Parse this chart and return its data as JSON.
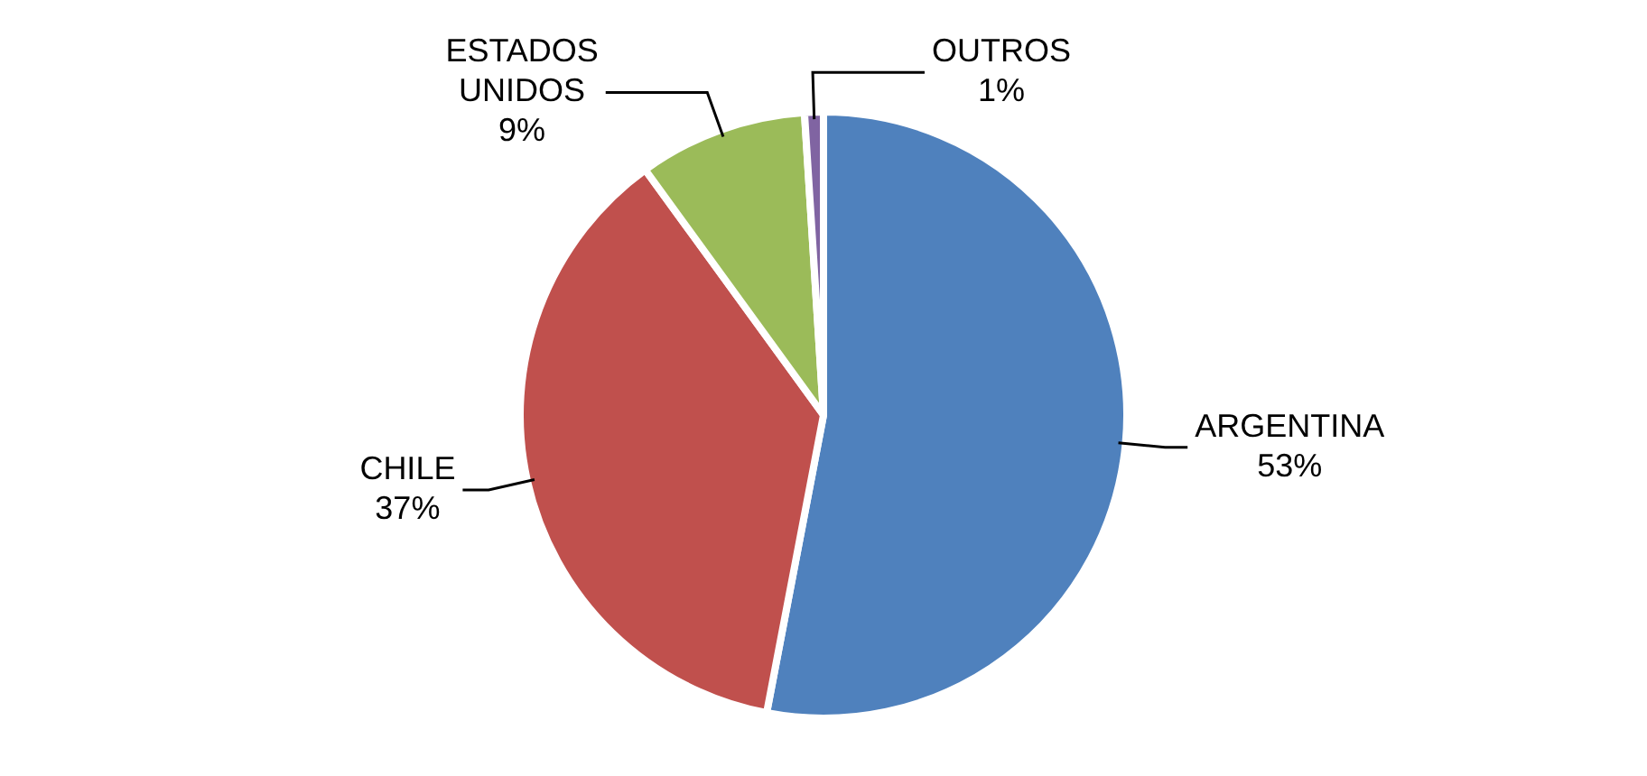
{
  "chart_data": {
    "type": "pie",
    "categories": [
      "ARGENTINA",
      "CHILE",
      "ESTADOS UNIDOS",
      "OUTROS"
    ],
    "values": [
      53,
      37,
      9,
      1
    ],
    "colors": [
      "#4f81bd",
      "#c0504d",
      "#9bbb59",
      "#8064a2"
    ],
    "value_labels": [
      "53%",
      "37%",
      "9%",
      "1%"
    ],
    "legend": false
  }
}
